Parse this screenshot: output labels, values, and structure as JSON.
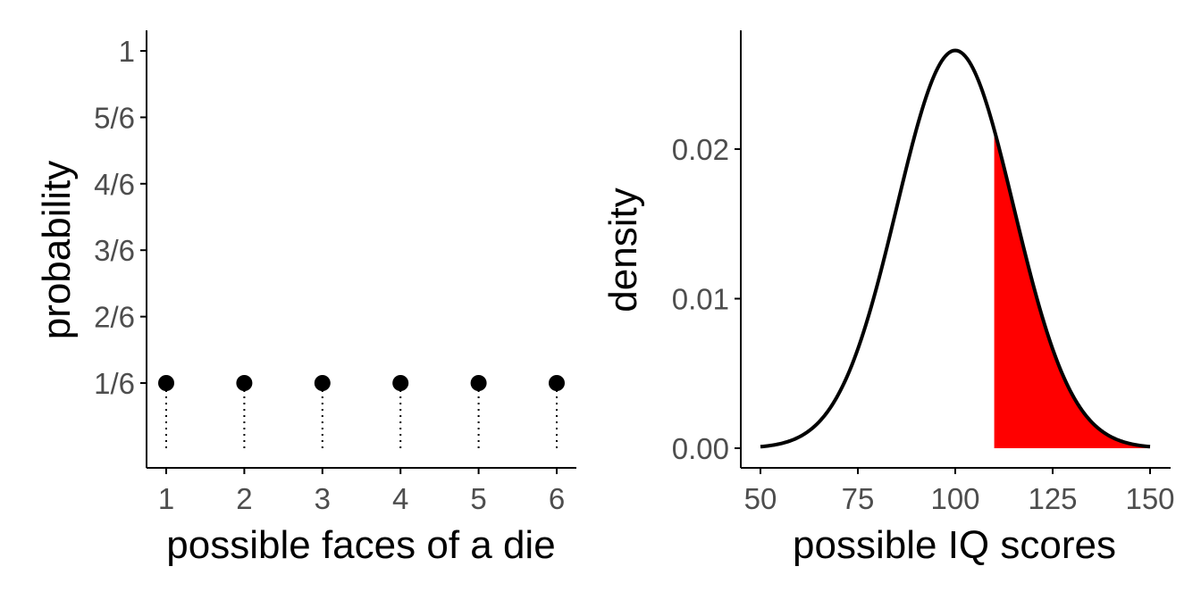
{
  "chart_data": [
    {
      "type": "scatter",
      "subtype": "lollipop",
      "x": [
        1,
        2,
        3,
        4,
        5,
        6
      ],
      "y": [
        0.1667,
        0.1667,
        0.1667,
        0.1667,
        0.1667,
        0.1667
      ],
      "xlabel": "possible faces of a die",
      "ylabel": "probability",
      "xticks": [
        "1",
        "2",
        "3",
        "4",
        "5",
        "6"
      ],
      "yticks": [
        {
          "value": 0.1667,
          "label": "1/6"
        },
        {
          "value": 0.3333,
          "label": "2/6"
        },
        {
          "value": 0.5,
          "label": "3/6"
        },
        {
          "value": 0.6667,
          "label": "4/6"
        },
        {
          "value": 0.8333,
          "label": "5/6"
        },
        {
          "value": 1.0,
          "label": "1"
        }
      ],
      "ylim": [
        0,
        1
      ],
      "stems": "dotted",
      "marker_color": "#000000",
      "grid": false
    },
    {
      "type": "line",
      "distribution": "normal",
      "mean": 100,
      "sd": 15,
      "xlim": [
        50,
        150
      ],
      "ylim": [
        0,
        0.0267
      ],
      "shaded_region": {
        "from": 110,
        "to": 150,
        "color": "#ff0000"
      },
      "xlabel": "possible IQ scores",
      "ylabel": "density",
      "xticks": [
        50,
        75,
        100,
        125,
        150
      ],
      "yticks": [
        {
          "value": 0.0,
          "label": "0.00"
        },
        {
          "value": 0.01,
          "label": "0.01"
        },
        {
          "value": 0.02,
          "label": "0.02"
        }
      ],
      "line_color": "#000000",
      "grid": false
    }
  ]
}
